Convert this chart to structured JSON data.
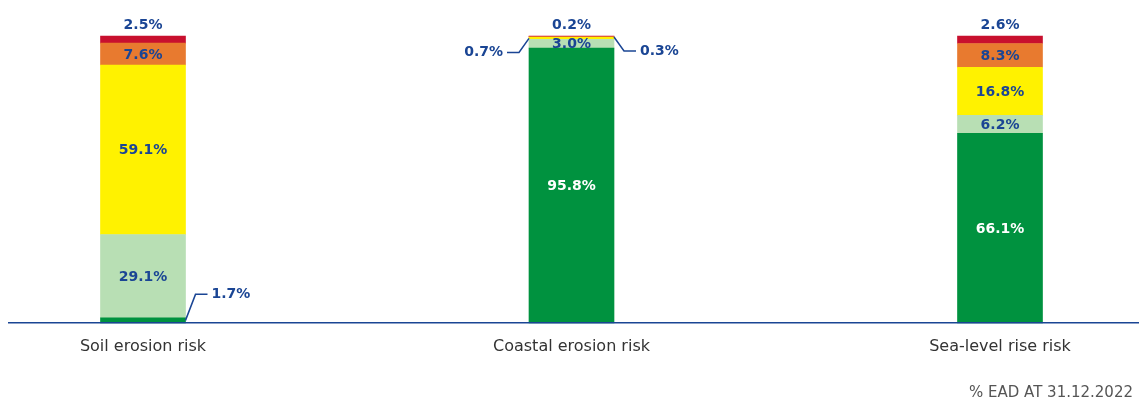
{
  "chart_data": {
    "type": "bar",
    "stacked": true,
    "categories": [
      "Soil erosion risk",
      "Coastal erosion risk",
      "Sea-level rise risk"
    ],
    "series": [
      {
        "color": "#00923f",
        "values": [
          1.7,
          95.8,
          66.1
        ],
        "value_labels": [
          "1.7%",
          "95.8%",
          "66.1%"
        ]
      },
      {
        "color": "#b8dfb4",
        "values": [
          29.1,
          3.0,
          6.2
        ],
        "value_labels": [
          "29.1%",
          "3.0%",
          "6.2%"
        ]
      },
      {
        "color": "#fff200",
        "values": [
          59.1,
          0.7,
          16.8
        ],
        "value_labels": [
          "59.1%",
          "0.7%",
          "16.8%"
        ]
      },
      {
        "color": "#e87a2f",
        "values": [
          7.6,
          0.3,
          8.3
        ],
        "value_labels": [
          "7.6%",
          "0.3%",
          "8.3%"
        ]
      },
      {
        "color": "#c8102e",
        "values": [
          2.5,
          0.2,
          2.6
        ],
        "value_labels": [
          "2.5%",
          "0.2%",
          "2.6%"
        ]
      }
    ],
    "annotations": [
      "% EAD AT 31.12.2022"
    ]
  }
}
